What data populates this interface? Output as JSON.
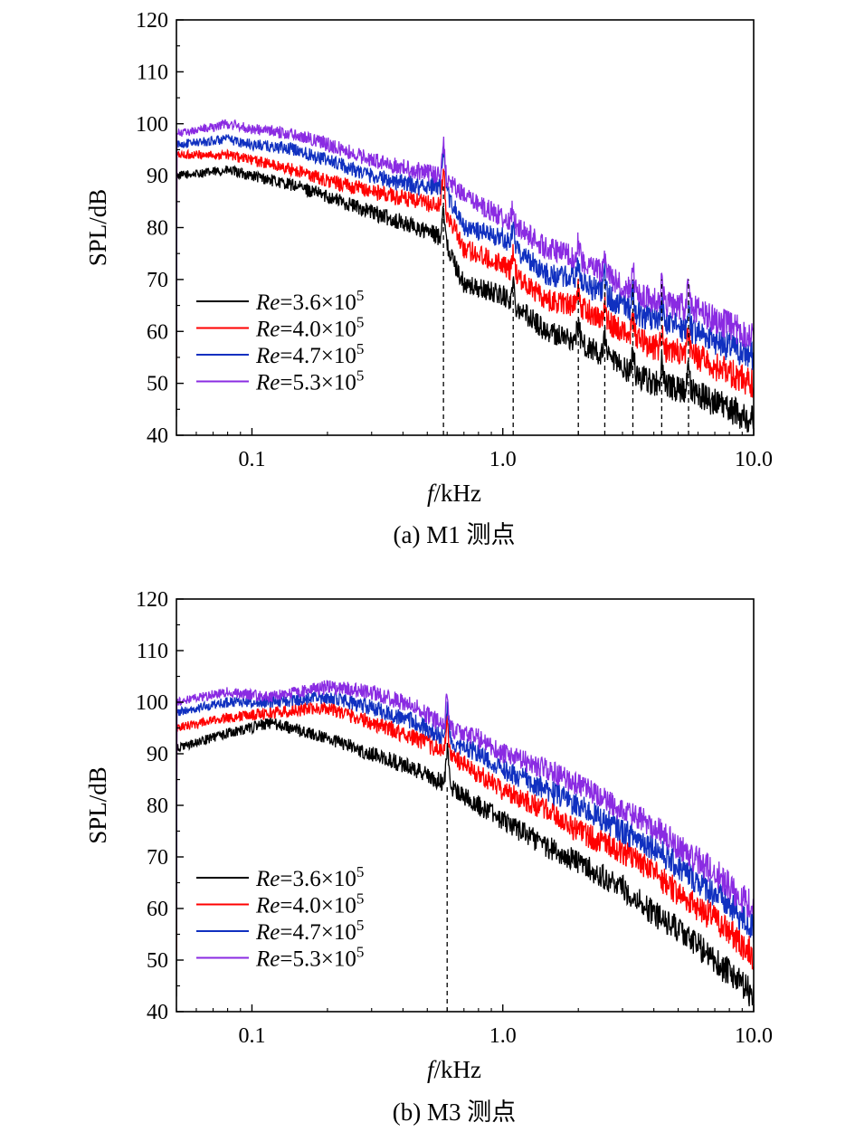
{
  "legend_prefix": "Re",
  "legend_mult": "×10",
  "legend_exp": "5",
  "chart_data": [
    {
      "type": "line",
      "caption": "(a) M1 测点",
      "xlabel_var": "f",
      "xlabel_unit": "/kHz",
      "ylabel": "SPL/dB",
      "xscale": "log",
      "xlim": [
        0.05,
        10.0
      ],
      "ylim": [
        40,
        120
      ],
      "xticks": [
        0.1,
        1.0,
        10.0
      ],
      "xtick_labels": [
        "0.1",
        "1.0",
        "10.0"
      ],
      "yticks": [
        40,
        50,
        60,
        70,
        80,
        90,
        100,
        110,
        120
      ],
      "yticks_labels": [
        "40",
        "50",
        "60",
        "70",
        "80",
        "90",
        "100",
        "110",
        "120"
      ],
      "legend_position": "lower-left",
      "annotations": "dashed vertical lines at tonal peaks",
      "tonal_peaks_khz": [
        0.58,
        1.1,
        2.0,
        2.55,
        3.3,
        4.3,
        5.5
      ],
      "series": [
        {
          "label_value": "3.6",
          "color": "#000000",
          "x": [
            0.05,
            0.08,
            0.1,
            0.15,
            0.2,
            0.3,
            0.45,
            0.58,
            0.7,
            1.0,
            1.5,
            2.0,
            3.0,
            4.0,
            6.0,
            8.0,
            10.0
          ],
          "y": [
            90,
            91,
            90,
            88,
            86,
            83,
            80,
            78,
            69,
            67,
            60,
            58,
            53,
            50,
            48,
            45,
            43
          ]
        },
        {
          "label_value": "4.0",
          "color": "#ff0000",
          "x": [
            0.05,
            0.08,
            0.1,
            0.15,
            0.2,
            0.3,
            0.45,
            0.58,
            0.7,
            1.0,
            1.5,
            2.0,
            3.0,
            4.0,
            6.0,
            8.0,
            10.0
          ],
          "y": [
            94,
            94,
            93,
            91,
            89,
            87,
            85,
            84,
            76,
            73,
            66,
            65,
            60,
            57,
            55,
            52,
            50
          ]
        },
        {
          "label_value": "4.7",
          "color": "#1030c0",
          "x": [
            0.05,
            0.08,
            0.1,
            0.15,
            0.2,
            0.3,
            0.45,
            0.58,
            0.7,
            1.0,
            1.5,
            2.0,
            3.0,
            4.0,
            6.0,
            8.0,
            10.0
          ],
          "y": [
            96,
            97,
            96,
            95,
            93,
            90,
            88,
            88,
            80,
            78,
            71,
            70,
            65,
            62,
            60,
            57,
            55
          ]
        },
        {
          "label_value": "5.3",
          "color": "#8a2be2",
          "x": [
            0.05,
            0.08,
            0.1,
            0.15,
            0.2,
            0.3,
            0.45,
            0.58,
            0.7,
            1.0,
            1.5,
            2.0,
            3.0,
            4.0,
            6.0,
            8.0,
            10.0
          ],
          "y": [
            98,
            100,
            99,
            98,
            96,
            93,
            91,
            90,
            86,
            82,
            76,
            74,
            69,
            66,
            64,
            61,
            59
          ]
        }
      ]
    },
    {
      "type": "line",
      "caption": "(b) M3 测点",
      "xlabel_var": "f",
      "xlabel_unit": "/kHz",
      "ylabel": "SPL/dB",
      "xscale": "log",
      "xlim": [
        0.05,
        10.0
      ],
      "ylim": [
        40,
        120
      ],
      "xticks": [
        0.1,
        1.0,
        10.0
      ],
      "xtick_labels": [
        "0.1",
        "1.0",
        "10.0"
      ],
      "yticks": [
        40,
        50,
        60,
        70,
        80,
        90,
        100,
        110,
        120
      ],
      "yticks_labels": [
        "40",
        "50",
        "60",
        "70",
        "80",
        "90",
        "100",
        "110",
        "120"
      ],
      "legend_position": "lower-left",
      "annotations": "dashed vertical line at tonal peak",
      "tonal_peaks_khz": [
        0.6
      ],
      "series": [
        {
          "label_value": "3.6",
          "color": "#000000",
          "x": [
            0.05,
            0.08,
            0.12,
            0.2,
            0.3,
            0.45,
            0.6,
            0.8,
            1.0,
            1.5,
            2.0,
            3.0,
            4.0,
            5.0,
            7.0,
            10.0
          ],
          "y": [
            91,
            94,
            96,
            93,
            90,
            87,
            84,
            80,
            77,
            72,
            69,
            64,
            59,
            56,
            50,
            43
          ]
        },
        {
          "label_value": "4.0",
          "color": "#ff0000",
          "x": [
            0.05,
            0.08,
            0.12,
            0.2,
            0.3,
            0.45,
            0.6,
            0.8,
            1.0,
            1.5,
            2.0,
            3.0,
            4.0,
            5.0,
            7.0,
            10.0
          ],
          "y": [
            95,
            97,
            98,
            99,
            96,
            93,
            90,
            86,
            83,
            79,
            75,
            71,
            67,
            63,
            58,
            51
          ]
        },
        {
          "label_value": "4.7",
          "color": "#1030c0",
          "x": [
            0.05,
            0.08,
            0.12,
            0.2,
            0.3,
            0.45,
            0.6,
            0.8,
            1.0,
            1.5,
            2.0,
            3.0,
            4.0,
            5.0,
            7.0,
            10.0
          ],
          "y": [
            98,
            100,
            100,
            101,
            99,
            96,
            93,
            90,
            87,
            83,
            80,
            75,
            72,
            68,
            63,
            56
          ]
        },
        {
          "label_value": "5.3",
          "color": "#8a2be2",
          "x": [
            0.05,
            0.08,
            0.12,
            0.2,
            0.3,
            0.45,
            0.6,
            0.8,
            1.0,
            1.5,
            2.0,
            3.0,
            4.0,
            5.0,
            7.0,
            10.0
          ],
          "y": [
            100,
            102,
            101,
            103,
            102,
            99,
            95,
            93,
            90,
            87,
            84,
            79,
            76,
            72,
            67,
            60
          ]
        }
      ]
    }
  ]
}
